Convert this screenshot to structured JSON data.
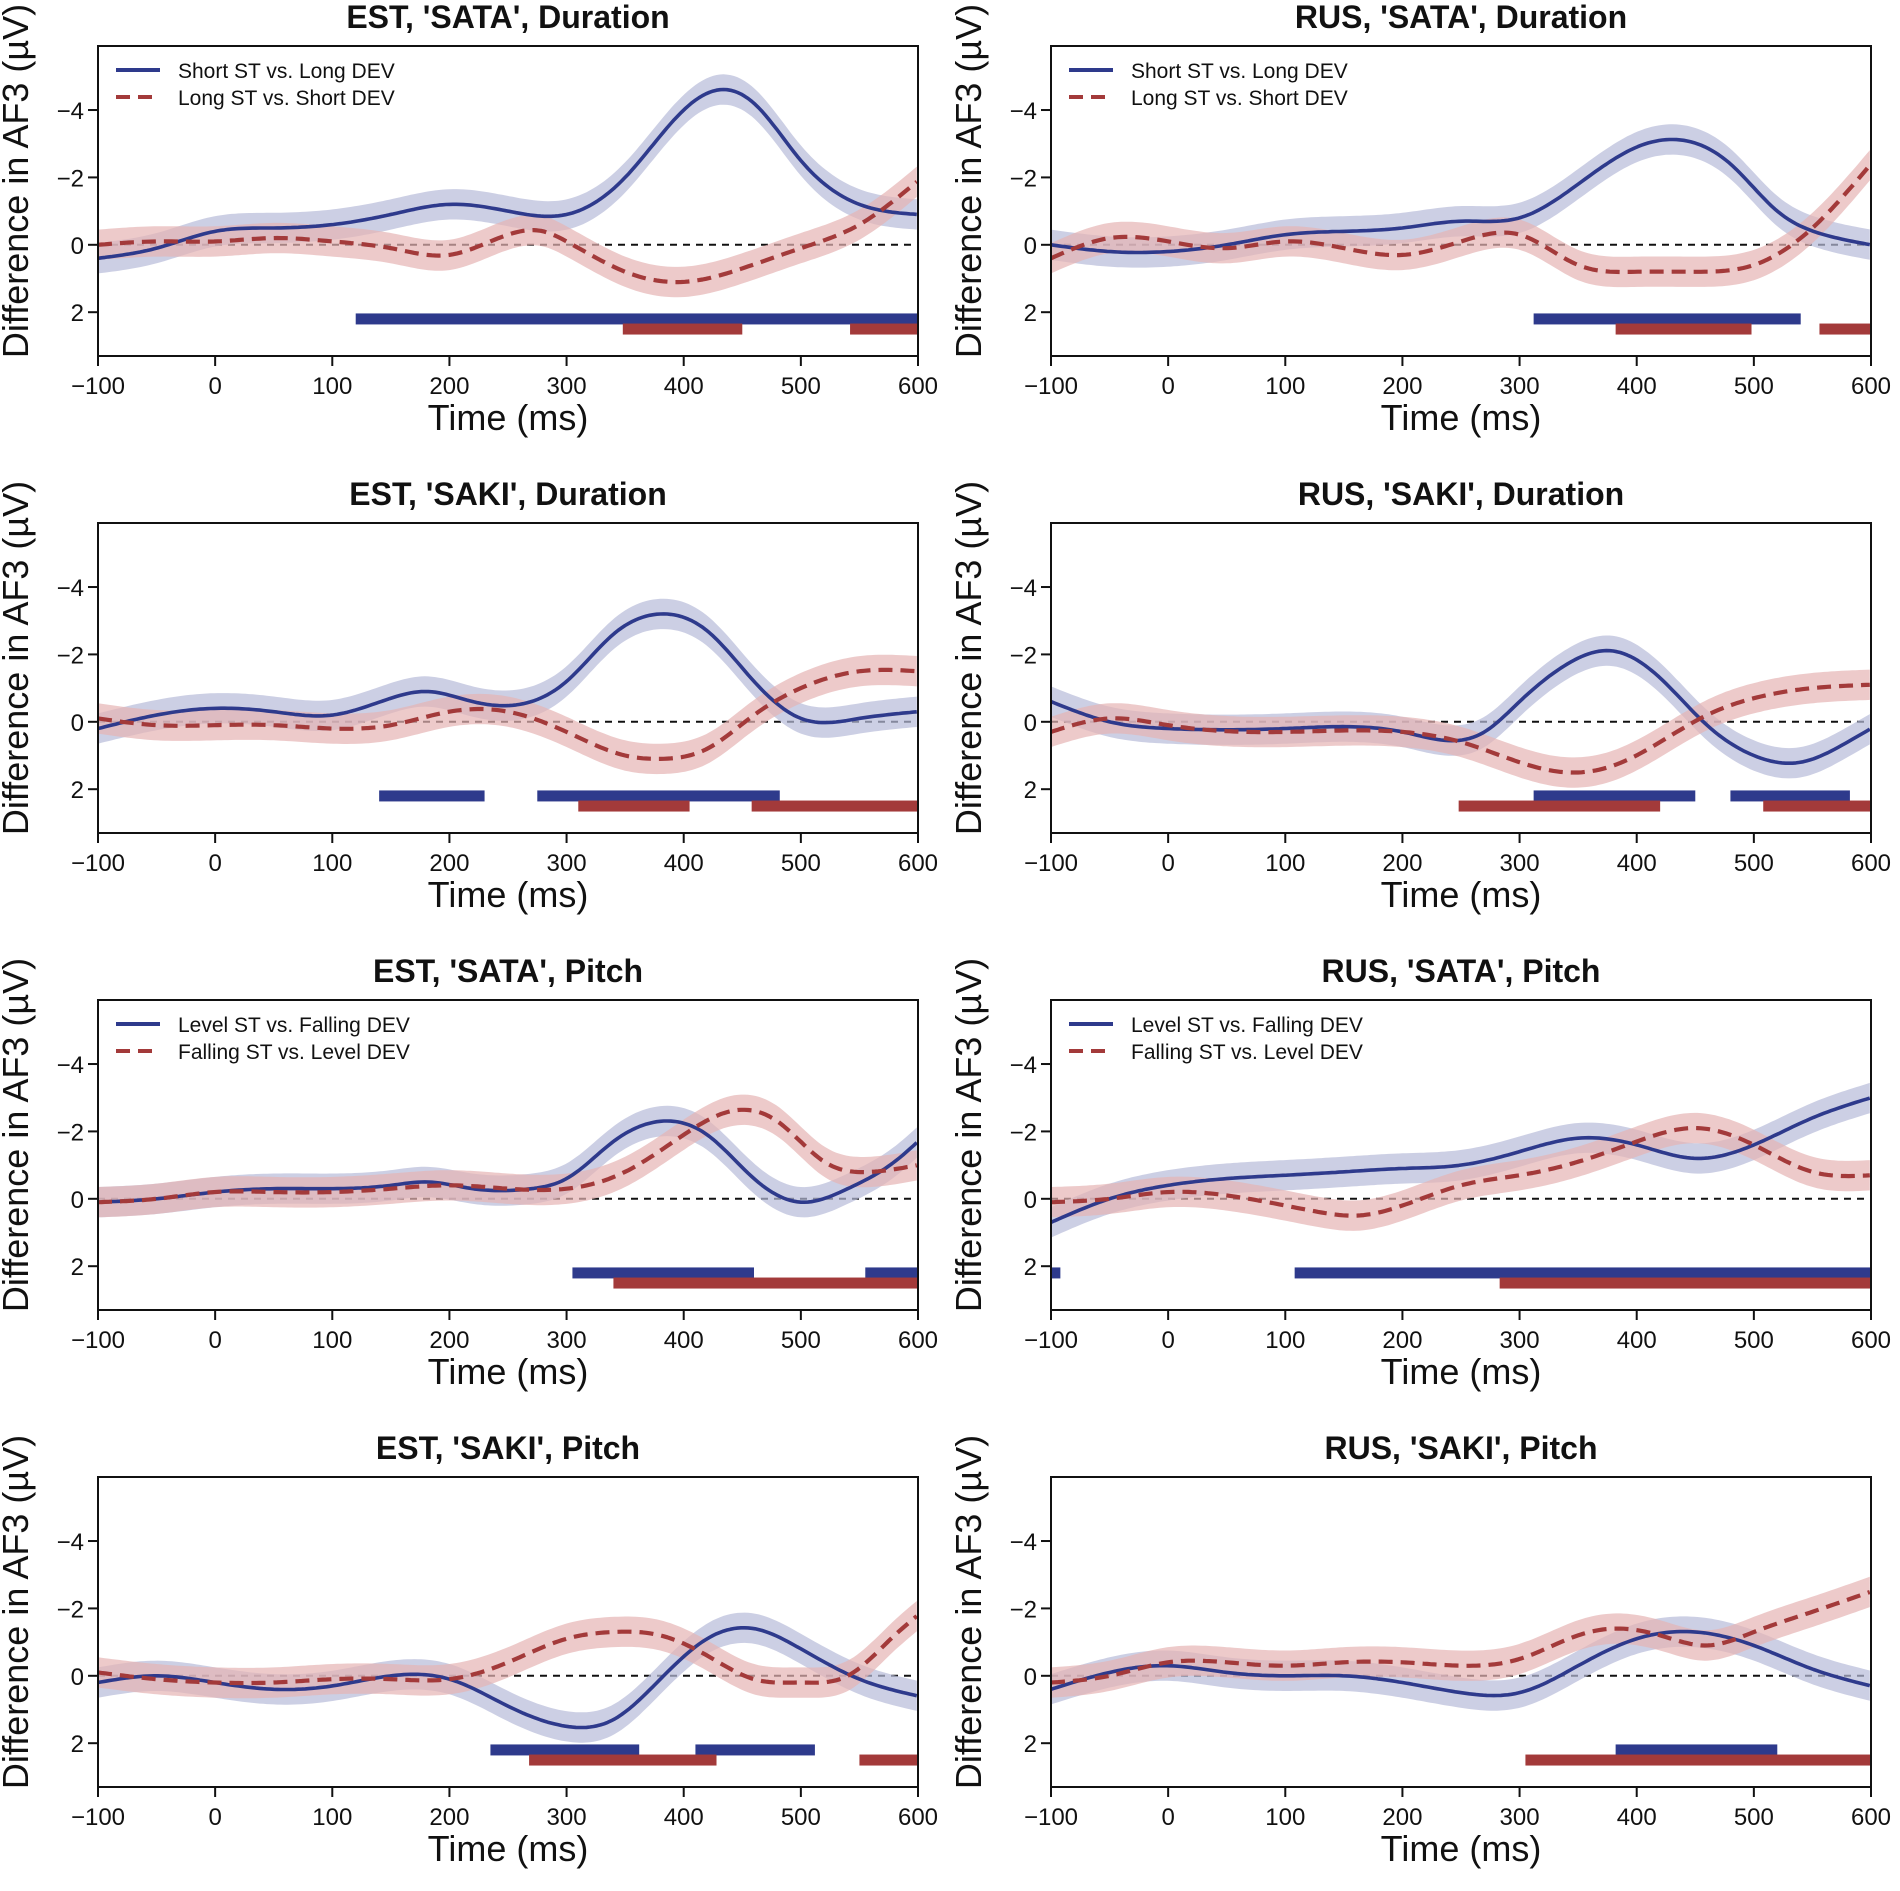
{
  "figure": {
    "xlabel": "Time (ms)",
    "ylabel": "Difference in AF3 (µV)",
    "colors": {
      "blue": "#2e3a8c",
      "red": "#a33a3a",
      "blue_band": "#b7bbd9",
      "red_band": "#e6b4b4"
    }
  },
  "chart_data": [
    {
      "type": "line",
      "title": "EST, 'SATA', Duration",
      "xlabel": "Time (ms)",
      "ylabel": "Difference in AF3 (µV)",
      "xlim": [
        -100,
        600
      ],
      "ylim": [
        3.3,
        -5.9
      ],
      "xticks": [
        "-100",
        "0",
        "100",
        "200",
        "300",
        "400",
        "500",
        "600"
      ],
      "yticks": [
        "-4",
        "-2",
        "0",
        "2"
      ],
      "legend": [
        "Short ST vs. Long DEV",
        "Long ST vs. Short DEV"
      ],
      "series": [
        {
          "name": "Short ST vs. Long DEV",
          "style": "solid",
          "color": "blue",
          "x": [
            -100,
            -50,
            0,
            50,
            100,
            150,
            200,
            250,
            300,
            350,
            400,
            430,
            460,
            500,
            550,
            600
          ],
          "y": [
            0.4,
            0.1,
            -0.4,
            -0.5,
            -0.6,
            -0.9,
            -1.2,
            -1.0,
            -0.9,
            -2.0,
            -4.0,
            -4.6,
            -4.2,
            -2.5,
            -1.2,
            -0.9
          ]
        },
        {
          "name": "Long ST vs. Short DEV",
          "style": "dashed",
          "color": "red",
          "x": [
            -100,
            -50,
            0,
            50,
            100,
            150,
            200,
            250,
            280,
            300,
            350,
            400,
            450,
            500,
            550,
            600
          ],
          "y": [
            0.0,
            -0.1,
            -0.1,
            -0.2,
            -0.1,
            0.1,
            0.3,
            -0.3,
            -0.4,
            -0.1,
            0.8,
            1.1,
            0.7,
            0.1,
            -0.6,
            -1.9
          ]
        }
      ],
      "sig_bars": {
        "blue": [
          [
            120,
            600
          ]
        ],
        "red": [
          [
            348,
            450
          ],
          [
            542,
            600
          ]
        ]
      }
    },
    {
      "type": "line",
      "title": "RUS, 'SATA', Duration",
      "xlabel": "Time (ms)",
      "ylabel": "Difference in AF3 (µV)",
      "xlim": [
        -100,
        600
      ],
      "ylim": [
        3.3,
        -5.9
      ],
      "xticks": [
        "-100",
        "0",
        "100",
        "200",
        "300",
        "400",
        "500",
        "600"
      ],
      "yticks": [
        "-4",
        "-2",
        "0",
        "2"
      ],
      "legend": [
        "Short ST vs. Long DEV",
        "Long ST vs. Short DEV"
      ],
      "series": [
        {
          "name": "Short ST vs. Long DEV",
          "style": "solid",
          "color": "blue",
          "x": [
            -100,
            -50,
            0,
            50,
            100,
            150,
            200,
            250,
            300,
            350,
            400,
            440,
            480,
            520,
            560,
            600
          ],
          "y": [
            0.0,
            0.2,
            0.2,
            0.0,
            -0.3,
            -0.4,
            -0.5,
            -0.7,
            -0.8,
            -1.8,
            -2.9,
            -3.1,
            -2.4,
            -1.0,
            -0.3,
            0.0
          ]
        },
        {
          "name": "Long ST vs. Short DEV",
          "style": "dashed",
          "color": "red",
          "x": [
            -100,
            -50,
            0,
            50,
            100,
            150,
            200,
            250,
            300,
            350,
            400,
            450,
            500,
            550,
            600
          ],
          "y": [
            0.4,
            -0.2,
            -0.1,
            0.1,
            -0.1,
            0.1,
            0.3,
            -0.1,
            -0.3,
            0.6,
            0.8,
            0.8,
            0.6,
            -0.5,
            -2.4
          ]
        }
      ],
      "sig_bars": {
        "blue": [
          [
            312,
            540
          ]
        ],
        "red": [
          [
            382,
            498
          ],
          [
            556,
            600
          ]
        ]
      }
    },
    {
      "type": "line",
      "title": "EST, 'SAKI', Duration",
      "xlabel": "Time (ms)",
      "ylabel": "Difference in AF3 (µV)",
      "xlim": [
        -100,
        600
      ],
      "ylim": [
        3.3,
        -5.9
      ],
      "xticks": [
        "-100",
        "0",
        "100",
        "200",
        "300",
        "400",
        "500",
        "600"
      ],
      "yticks": [
        "-4",
        "-2",
        "0",
        "2"
      ],
      "legend": [],
      "series": [
        {
          "name": "Short ST vs. Long DEV",
          "style": "solid",
          "color": "blue",
          "x": [
            -100,
            -50,
            0,
            50,
            100,
            150,
            180,
            220,
            270,
            300,
            340,
            380,
            420,
            460,
            500,
            550,
            600
          ],
          "y": [
            0.2,
            -0.2,
            -0.4,
            -0.3,
            -0.2,
            -0.7,
            -0.9,
            -0.6,
            -0.6,
            -1.2,
            -2.6,
            -3.2,
            -2.7,
            -1.2,
            -0.1,
            -0.1,
            -0.3
          ]
        },
        {
          "name": "Long ST vs. Short DEV",
          "style": "dashed",
          "color": "red",
          "x": [
            -100,
            -50,
            0,
            50,
            100,
            150,
            200,
            250,
            300,
            350,
            380,
            420,
            460,
            500,
            550,
            600
          ],
          "y": [
            -0.1,
            0.1,
            0.1,
            0.1,
            0.2,
            0.1,
            -0.3,
            -0.3,
            0.3,
            1.0,
            1.1,
            0.8,
            -0.2,
            -1.0,
            -1.5,
            -1.5
          ]
        }
      ],
      "sig_bars": {
        "blue": [
          [
            140,
            230
          ],
          [
            275,
            482
          ]
        ],
        "red": [
          [
            310,
            405
          ],
          [
            458,
            600
          ]
        ]
      }
    },
    {
      "type": "line",
      "title": "RUS, 'SAKI', Duration",
      "xlabel": "Time (ms)",
      "ylabel": "Difference in AF3 (µV)",
      "xlim": [
        -100,
        600
      ],
      "ylim": [
        3.3,
        -5.9
      ],
      "xticks": [
        "-100",
        "0",
        "100",
        "200",
        "300",
        "400",
        "500",
        "600"
      ],
      "yticks": [
        "-4",
        "-2",
        "0",
        "2"
      ],
      "legend": [],
      "series": [
        {
          "name": "Short ST vs. Long DEV",
          "style": "solid",
          "color": "blue",
          "x": [
            -100,
            -50,
            0,
            100,
            200,
            270,
            300,
            340,
            380,
            420,
            460,
            500,
            540,
            580,
            600
          ],
          "y": [
            -0.6,
            0.0,
            0.2,
            0.2,
            0.3,
            0.3,
            -0.6,
            -1.7,
            -2.1,
            -1.3,
            0.1,
            1.0,
            1.2,
            0.6,
            0.2
          ]
        },
        {
          "name": "Long ST vs. Short DEV",
          "style": "dashed",
          "color": "red",
          "x": [
            -100,
            -50,
            0,
            100,
            200,
            250,
            300,
            340,
            380,
            420,
            460,
            500,
            550,
            600
          ],
          "y": [
            0.3,
            -0.1,
            0.1,
            0.3,
            0.3,
            0.6,
            1.2,
            1.5,
            1.3,
            0.6,
            -0.2,
            -0.7,
            -1.0,
            -1.1
          ]
        }
      ],
      "sig_bars": {
        "blue": [
          [
            312,
            450
          ],
          [
            480,
            582
          ]
        ],
        "red": [
          [
            248,
            420
          ],
          [
            508,
            600
          ]
        ]
      }
    },
    {
      "type": "line",
      "title": "EST, 'SATA', Pitch",
      "xlabel": "Time (ms)",
      "ylabel": "Difference in AF3 (µV)",
      "xlim": [
        -100,
        600
      ],
      "ylim": [
        3.3,
        -5.9
      ],
      "xticks": [
        "-100",
        "0",
        "100",
        "200",
        "300",
        "400",
        "500",
        "600"
      ],
      "yticks": [
        "-4",
        "-2",
        "0",
        "2"
      ],
      "legend": [
        "Level ST vs. Falling DEV",
        "Falling ST vs. Level DEV"
      ],
      "series": [
        {
          "name": "Level ST vs. Falling DEV",
          "style": "solid",
          "color": "blue",
          "x": [
            -100,
            -50,
            0,
            50,
            100,
            150,
            180,
            220,
            270,
            300,
            340,
            380,
            420,
            460,
            500,
            540,
            580,
            600
          ],
          "y": [
            0.1,
            0.0,
            -0.2,
            -0.3,
            -0.3,
            -0.4,
            -0.5,
            -0.3,
            -0.3,
            -0.6,
            -1.7,
            -2.3,
            -1.9,
            -0.6,
            0.1,
            -0.3,
            -1.1,
            -1.7
          ]
        },
        {
          "name": "Falling ST vs. Level DEV",
          "style": "dashed",
          "color": "red",
          "x": [
            -100,
            -50,
            0,
            50,
            100,
            150,
            200,
            250,
            300,
            350,
            400,
            440,
            480,
            520,
            560,
            600
          ],
          "y": [
            0.1,
            0.0,
            -0.2,
            -0.2,
            -0.2,
            -0.3,
            -0.4,
            -0.3,
            -0.3,
            -0.8,
            -1.9,
            -2.6,
            -2.3,
            -1.1,
            -0.8,
            -1.0
          ]
        }
      ],
      "sig_bars": {
        "blue": [
          [
            305,
            460
          ],
          [
            555,
            600
          ]
        ],
        "red": [
          [
            340,
            600
          ]
        ]
      }
    },
    {
      "type": "line",
      "title": "RUS, 'SATA', Pitch",
      "xlabel": "Time (ms)",
      "ylabel": "Difference in AF3 (µV)",
      "xlim": [
        -100,
        600
      ],
      "ylim": [
        3.3,
        -5.9
      ],
      "xticks": [
        "-100",
        "0",
        "100",
        "200",
        "300",
        "400",
        "500",
        "600"
      ],
      "yticks": [
        "-4",
        "-2",
        "0",
        "2"
      ],
      "legend": [
        "Level ST vs. Falling DEV",
        "Falling ST vs. Level DEV"
      ],
      "series": [
        {
          "name": "Level ST vs. Falling DEV",
          "style": "solid",
          "color": "blue",
          "x": [
            -100,
            -50,
            0,
            50,
            100,
            150,
            200,
            250,
            300,
            350,
            400,
            450,
            500,
            550,
            600
          ],
          "y": [
            0.7,
            0.0,
            -0.4,
            -0.6,
            -0.7,
            -0.8,
            -0.9,
            -1.0,
            -1.4,
            -1.8,
            -1.6,
            -1.2,
            -1.6,
            -2.4,
            -3.0
          ]
        },
        {
          "name": "Falling ST vs. Level DEV",
          "style": "dashed",
          "color": "red",
          "x": [
            -100,
            -50,
            0,
            50,
            100,
            130,
            160,
            200,
            250,
            300,
            350,
            400,
            450,
            500,
            550,
            600
          ],
          "y": [
            0.1,
            0.0,
            -0.2,
            -0.1,
            0.2,
            0.4,
            0.5,
            0.2,
            -0.4,
            -0.7,
            -1.1,
            -1.7,
            -2.1,
            -1.6,
            -0.8,
            -0.7
          ]
        }
      ],
      "sig_bars": {
        "blue": [
          [
            -100,
            -92
          ],
          [
            108,
            600
          ]
        ],
        "red": [
          [
            283,
            600
          ]
        ]
      }
    },
    {
      "type": "line",
      "title": "EST, 'SAKI', Pitch",
      "xlabel": "Time (ms)",
      "ylabel": "Difference in AF3 (µV)",
      "xlim": [
        -100,
        600
      ],
      "ylim": [
        3.3,
        -5.9
      ],
      "xticks": [
        "-100",
        "0",
        "100",
        "200",
        "300",
        "400",
        "500",
        "600"
      ],
      "yticks": [
        "-4",
        "-2",
        "0",
        "2"
      ],
      "legend": [],
      "series": [
        {
          "name": "Level ST vs. Falling DEV",
          "style": "solid",
          "color": "blue",
          "x": [
            -100,
            -50,
            0,
            50,
            100,
            150,
            200,
            250,
            300,
            340,
            380,
            420,
            460,
            500,
            550,
            600
          ],
          "y": [
            0.2,
            0.0,
            0.2,
            0.4,
            0.3,
            0.0,
            0.1,
            0.9,
            1.5,
            1.3,
            0.1,
            -1.1,
            -1.4,
            -0.8,
            0.1,
            0.6
          ]
        },
        {
          "name": "Falling ST vs. Level DEV",
          "style": "dashed",
          "color": "red",
          "x": [
            -100,
            -50,
            0,
            50,
            100,
            150,
            200,
            250,
            300,
            340,
            380,
            420,
            460,
            500,
            540,
            580,
            600
          ],
          "y": [
            -0.1,
            0.1,
            0.2,
            0.2,
            0.1,
            0.1,
            0.1,
            -0.4,
            -1.1,
            -1.3,
            -1.2,
            -0.6,
            0.1,
            0.2,
            0.0,
            -1.2,
            -1.8
          ]
        }
      ],
      "sig_bars": {
        "blue": [
          [
            235,
            362
          ],
          [
            410,
            512
          ]
        ],
        "red": [
          [
            268,
            428
          ],
          [
            550,
            600
          ]
        ]
      }
    },
    {
      "type": "line",
      "title": "RUS, 'SAKI', Pitch",
      "xlabel": "Time (ms)",
      "ylabel": "Difference in AF3 (µV)",
      "xlim": [
        -100,
        600
      ],
      "ylim": [
        3.3,
        -5.9
      ],
      "xticks": [
        "-100",
        "0",
        "100",
        "200",
        "300",
        "400",
        "500",
        "600"
      ],
      "yticks": [
        "-4",
        "-2",
        "0",
        "2"
      ],
      "legend": [],
      "series": [
        {
          "name": "Level ST vs. Falling DEV",
          "style": "solid",
          "color": "blue",
          "x": [
            -100,
            -50,
            0,
            50,
            100,
            150,
            200,
            250,
            300,
            350,
            400,
            450,
            500,
            550,
            600
          ],
          "y": [
            0.4,
            -0.1,
            -0.3,
            -0.1,
            0.0,
            0.0,
            0.2,
            0.5,
            0.5,
            -0.3,
            -1.1,
            -1.3,
            -0.9,
            -0.2,
            0.3
          ]
        },
        {
          "name": "Falling ST vs. Level DEV",
          "style": "dashed",
          "color": "red",
          "x": [
            -100,
            -50,
            0,
            50,
            100,
            150,
            200,
            250,
            300,
            350,
            380,
            420,
            460,
            500,
            550,
            600
          ],
          "y": [
            0.2,
            0.0,
            -0.4,
            -0.4,
            -0.3,
            -0.4,
            -0.4,
            -0.3,
            -0.5,
            -1.2,
            -1.4,
            -1.2,
            -0.9,
            -1.3,
            -1.9,
            -2.5
          ]
        }
      ],
      "sig_bars": {
        "blue": [
          [
            382,
            520
          ]
        ],
        "red": [
          [
            305,
            600
          ]
        ]
      }
    }
  ]
}
